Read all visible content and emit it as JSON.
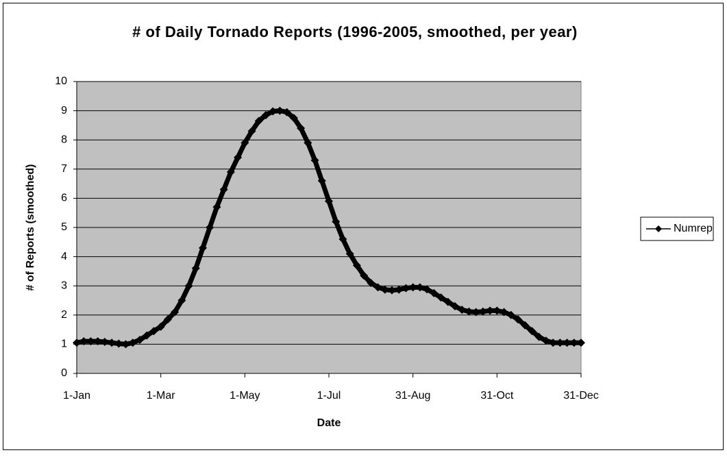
{
  "chart_data": {
    "type": "line",
    "title": "# of Daily Tornado Reports (1996-2005, smoothed, per year)",
    "x_label": "Date",
    "y_label": "# of Reports (smoothed)",
    "x": [
      0,
      5,
      10,
      15,
      20,
      25,
      30,
      35,
      40,
      45,
      50,
      55,
      60,
      65,
      70,
      75,
      80,
      85,
      90,
      95,
      100,
      105,
      110,
      115,
      120,
      125,
      130,
      135,
      140,
      145,
      150,
      155,
      160,
      165,
      170,
      175,
      180,
      185,
      190,
      195,
      200,
      205,
      210,
      215,
      220,
      225,
      230,
      235,
      240,
      245,
      250,
      255,
      260,
      265,
      270,
      275,
      280,
      285,
      290,
      295,
      300,
      305,
      310,
      315,
      320,
      325,
      330,
      335,
      340,
      345,
      350,
      355,
      360
    ],
    "series": [
      {
        "name": "Numrep",
        "color": "#000000",
        "values": [
          1.05,
          1.1,
          1.1,
          1.1,
          1.08,
          1.05,
          1.02,
          1.0,
          1.05,
          1.15,
          1.3,
          1.45,
          1.6,
          1.85,
          2.1,
          2.5,
          3.0,
          3.6,
          4.3,
          5.0,
          5.7,
          6.3,
          6.9,
          7.4,
          7.9,
          8.3,
          8.65,
          8.85,
          8.98,
          9.0,
          8.95,
          8.75,
          8.4,
          7.9,
          7.3,
          6.6,
          5.9,
          5.2,
          4.6,
          4.1,
          3.7,
          3.35,
          3.1,
          2.95,
          2.87,
          2.85,
          2.87,
          2.92,
          2.95,
          2.95,
          2.88,
          2.75,
          2.6,
          2.45,
          2.3,
          2.18,
          2.12,
          2.1,
          2.12,
          2.15,
          2.15,
          2.1,
          2.0,
          1.85,
          1.65,
          1.45,
          1.25,
          1.12,
          1.05,
          1.05,
          1.05,
          1.05,
          1.05
        ]
      }
    ],
    "xlim": [
      0,
      360
    ],
    "xticks": [
      {
        "value": 0,
        "label": "1-Jan"
      },
      {
        "value": 60,
        "label": "1-Mar"
      },
      {
        "value": 120,
        "label": "1-May"
      },
      {
        "value": 180,
        "label": "1-Jul"
      },
      {
        "value": 240,
        "label": "31-Aug"
      },
      {
        "value": 300,
        "label": "31-Oct"
      },
      {
        "value": 360,
        "label": "31-Dec"
      }
    ],
    "ylim": [
      0,
      10
    ],
    "yticks": [
      0,
      1,
      2,
      3,
      4,
      5,
      6,
      7,
      8,
      9,
      10
    ],
    "grid": true,
    "legend": "right",
    "plot_background": "#c0c0c0"
  }
}
